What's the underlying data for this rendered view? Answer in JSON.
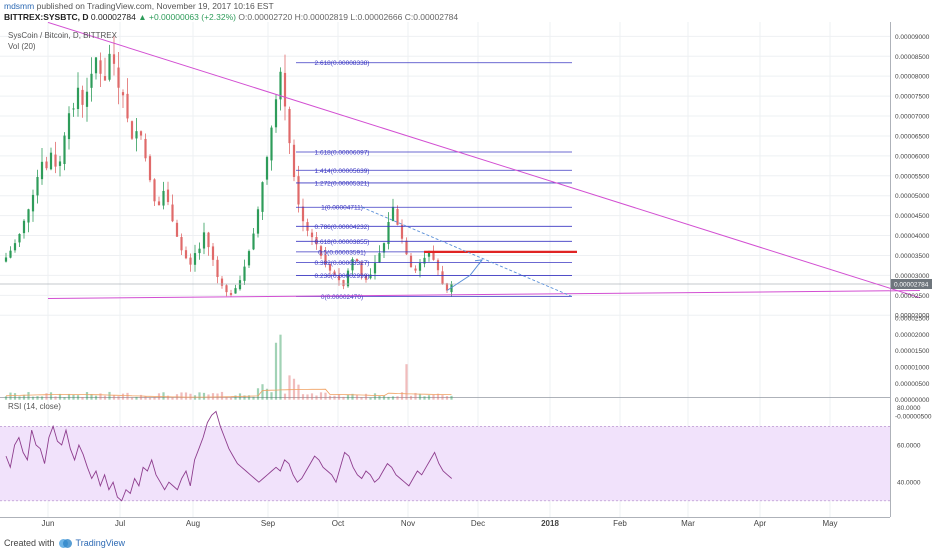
{
  "header": {
    "author": "mdsmm",
    "published": "published on TradingView.com, November 19, 2017 10:16 EST",
    "symbol": "BITTREX:SYSBTC, D",
    "last_price": "0.00002784",
    "change": "+0.00000063 (+2.32%)",
    "ohlc": "O:0.00002720 H:0.00002819 L:0.00002666 C:0.00002784"
  },
  "pane_labels": {
    "main": "SysCoin / Bitcoin, D, BITTREX",
    "volume": "Vol (20)",
    "rsi": "RSI (14, close)"
  },
  "footer": {
    "created_with": "Created with",
    "brand": "TradingView"
  },
  "colors": {
    "bull": "#2e9c5a",
    "bear": "#e06a6a",
    "trendline": "#d24fd2",
    "fib": "#3a37c2",
    "resistance": "#e02424",
    "projection": "#5a8fd8",
    "rsi_line": "#8e3e8e",
    "rsi_band": "#f1e2fb",
    "volume_ma": "#f0a060"
  },
  "chart_data": [
    {
      "type": "candlestick",
      "title": "SysCoin / Bitcoin, D, BITTREX",
      "x_axis": {
        "labels": [
          "Jun",
          "Jul",
          "Aug",
          "Sep",
          "Oct",
          "Nov",
          "Dec",
          "2018",
          "Feb",
          "Mar",
          "Apr",
          "May"
        ]
      },
      "y_axis": {
        "labels": [
          "0.00009000",
          "0.00008500",
          "0.00008000",
          "0.00007500",
          "0.00007000",
          "0.00006500",
          "0.00006000",
          "0.00005500",
          "0.00005000",
          "0.00004500",
          "0.00004000",
          "0.00003500",
          "0.00003000",
          "0.00002500",
          "0.00002000"
        ],
        "range": [
          1.78e-05,
          9.36e-05
        ]
      },
      "current_price": "0.00002784",
      "fibonacci_levels": [
        {
          "label": "0(0.00002470)",
          "value": 2.47e-05
        },
        {
          "label": "0.236(0.00002999)",
          "value": 2.999e-05
        },
        {
          "label": "0.382(0.00003327)",
          "value": 3.327e-05
        },
        {
          "label": "0.5(0.00003591)",
          "value": 3.591e-05
        },
        {
          "label": "0.618(0.00003855)",
          "value": 3.855e-05
        },
        {
          "label": "0.786(0.00004232)",
          "value": 4.232e-05
        },
        {
          "label": "1(0.00004711)",
          "value": 4.711e-05
        },
        {
          "label": "1.272(0.00005321)",
          "value": 5.321e-05
        },
        {
          "label": "1.414(0.00005639)",
          "value": 5.639e-05
        },
        {
          "label": "1.618(0.00006097)",
          "value": 6.097e-05
        },
        {
          "label": "2.618(0.00008338)",
          "value": 8.338e-05
        }
      ],
      "resistance_level": 3.59e-05,
      "trendlines": [
        {
          "name": "descending",
          "from": [
            "2017-05-07",
            9.35e-05
          ],
          "to": [
            "2018-05-13",
            2.44e-05
          ]
        },
        {
          "name": "support",
          "from": [
            "2017-05-07",
            2.42e-05
          ],
          "to": [
            "2018-05-13",
            2.62e-05
          ]
        }
      ],
      "close_series": [
        3.45e-05,
        3.62e-05,
        3.81e-05,
        4.04e-05,
        4.37e-05,
        4.66e-05,
        5.02e-05,
        5.47e-05,
        5.85e-05,
        5.69e-05,
        6.08e-05,
        5.73e-05,
        5.86e-05,
        6.51e-05,
        7.07e-05,
        7.19e-05,
        7.71e-05,
        7.28e-05,
        7.61e-05,
        8.06e-05,
        8.47e-05,
        8.06e-05,
        7.89e-05,
        8.56e-05,
        8.31e-05,
        7.71e-05,
        7.52e-05,
        6.94e-05,
        6.43e-05,
        6.62e-05,
        6.51e-05,
        5.94e-05,
        5.39e-05,
        4.86e-05,
        4.76e-05,
        5.12e-05,
        4.84e-05,
        4.36e-05,
        3.97e-05,
        3.63e-05,
        3.43e-05,
        3.27e-05,
        3.56e-05,
        3.67e-05,
        4.08e-05,
        3.71e-05,
        3.39e-05,
        2.96e-05,
        2.74e-05,
        2.58e-05,
        2.51e-05,
        2.68e-05,
        2.88e-05,
        3.22e-05,
        3.61e-05,
        4.05e-05,
        4.66e-05,
        5.34e-05,
        5.97e-05,
        6.71e-05,
        7.42e-05,
        8.11e-05,
        7.24e-05,
        6.32e-05,
        5.47e-05,
        4.78e-05,
        4.36e-05,
        4.12e-05,
        3.96e-05,
        3.78e-05,
        3.49e-05,
        3.29e-05,
        3.12e-05,
        3.02e-05,
        2.88e-05,
        2.73e-05,
        3.12e-05,
        3.41e-05,
        3.35e-05,
        3.01e-05,
        2.89e-05,
        3.02e-05,
        3.31e-05,
        3.56e-05,
        3.81e-05,
        4.34e-05,
        4.72e-05,
        4.27e-05,
        3.92e-05,
        3.53e-05,
        3.21e-05,
        3.12e-05,
        3.31e-05,
        3.44e-05,
        3.57e-05,
        3.39e-05,
        3.13e-05,
        2.78e-05,
        2.62e-05,
        2.78e-05
      ]
    },
    {
      "type": "bar",
      "title": "Vol (20)",
      "y_axis": {
        "labels": [
          "0.00002500",
          "0.00002000",
          "0.00001500",
          "0.00001000",
          "0.00000500",
          "0.00000000",
          "-0.00000500"
        ]
      }
    },
    {
      "type": "line",
      "title": "RSI (14, close)",
      "y_axis": {
        "labels": [
          "80.0000",
          "60.0000",
          "40.0000"
        ]
      },
      "band": [
        30,
        70
      ],
      "values": [
        54,
        48,
        60,
        64,
        56,
        52,
        68,
        60,
        58,
        50,
        64,
        70,
        62,
        60,
        68,
        58,
        52,
        60,
        55,
        48,
        42,
        46,
        38,
        44,
        36,
        40,
        32,
        30,
        36,
        34,
        42,
        38,
        48,
        46,
        52,
        44,
        40,
        36,
        40,
        38,
        36,
        42,
        46,
        38,
        52,
        58,
        64,
        72,
        76,
        78,
        70,
        64,
        58,
        54,
        50,
        48,
        46,
        44,
        42,
        40,
        42,
        44,
        46,
        48,
        46,
        52,
        50,
        44,
        40,
        42,
        46,
        50,
        54,
        52,
        48,
        46,
        44,
        40,
        48,
        56,
        54,
        48,
        44,
        42,
        46,
        44,
        40,
        42,
        46,
        50,
        48,
        44,
        42,
        40,
        38,
        42,
        46,
        44,
        48,
        52,
        56,
        50,
        46,
        44,
        42
      ]
    }
  ]
}
